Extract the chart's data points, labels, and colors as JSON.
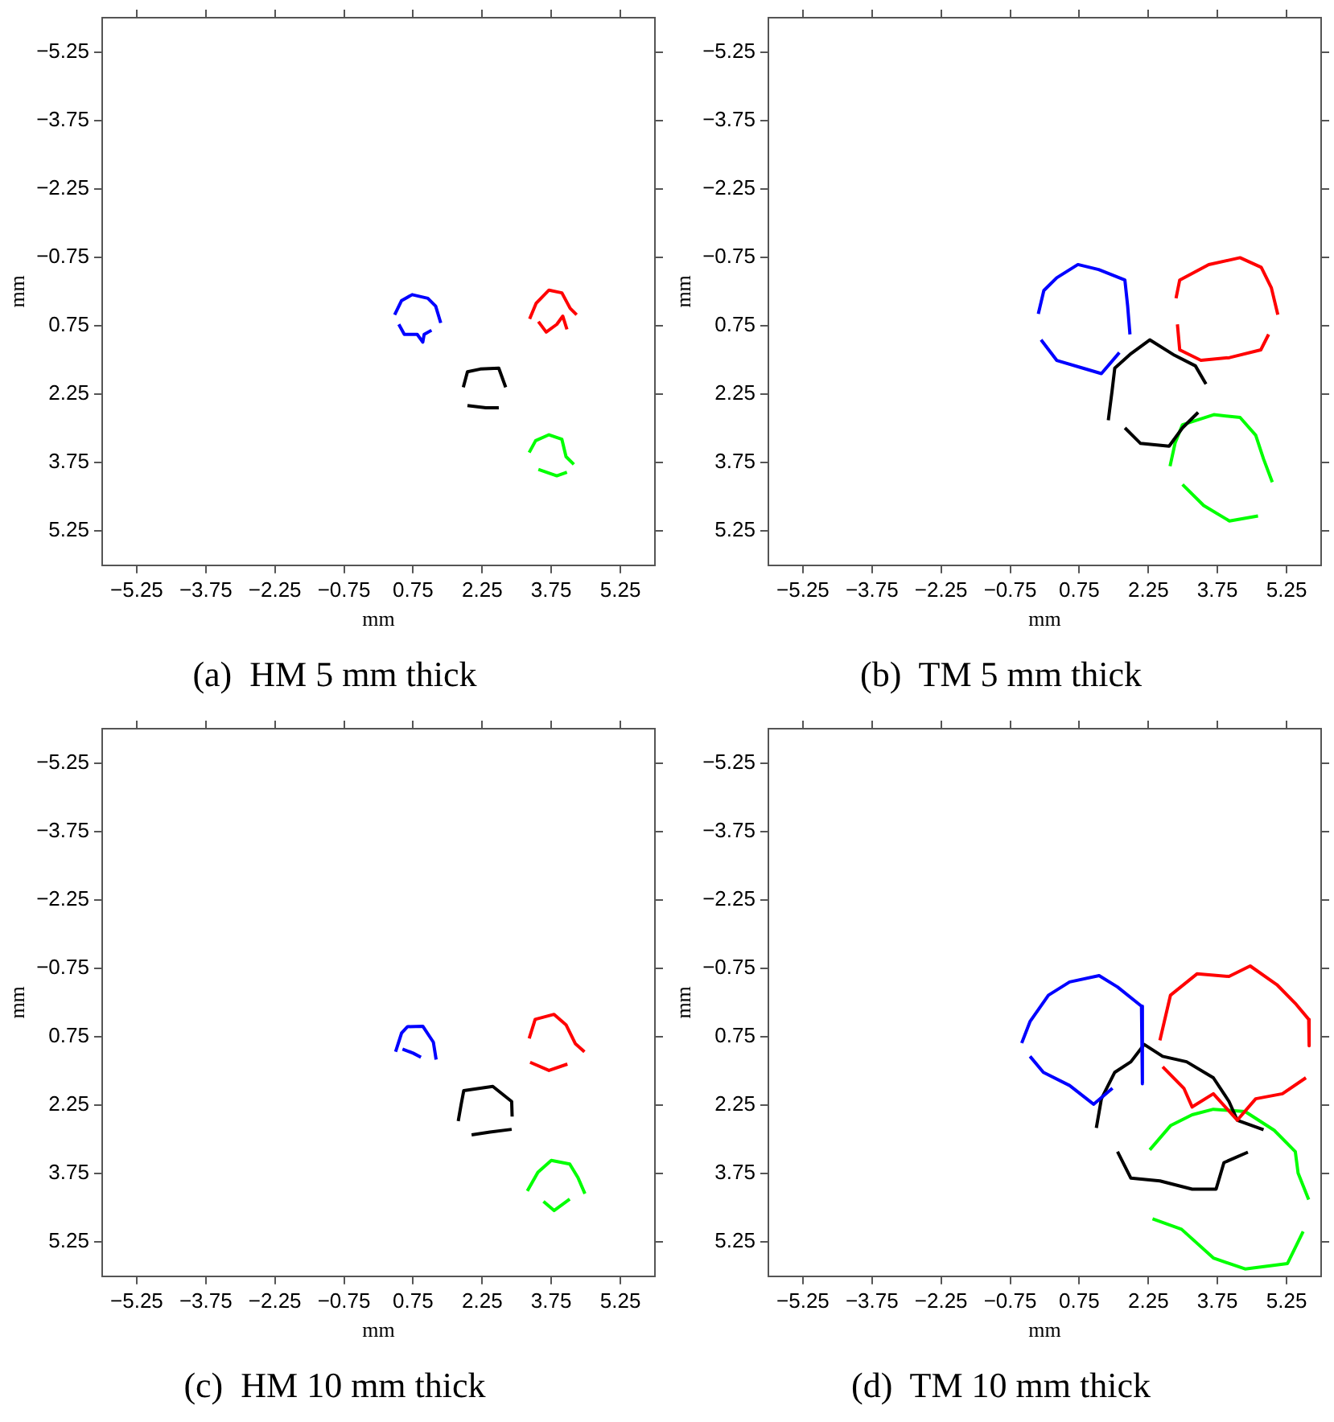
{
  "chart_data": [
    {
      "type": "line",
      "title": "(a)  HM 5 mm thick",
      "xlabel": "mm",
      "ylabel": "mm",
      "xlim": [
        -6,
        6
      ],
      "ylim": [
        6,
        -6
      ],
      "xticks": [
        -5.25,
        -3.75,
        -2.25,
        -0.75,
        0.75,
        2.25,
        3.75,
        5.25
      ],
      "yticks": [
        -5.25,
        -3.75,
        -2.25,
        -0.75,
        0.75,
        2.25,
        3.75,
        5.25
      ],
      "grid": false,
      "legend": false,
      "series": [
        {
          "color": "#0000ff",
          "x": [
            0.35,
            0.5,
            0.73,
            1.07,
            1.24,
            1.35
          ],
          "values": [
            0.51,
            0.2,
            0.07,
            0.15,
            0.32,
            0.69
          ]
        },
        {
          "color": "#0000ff",
          "x": [
            0.44,
            0.56,
            0.84,
            0.96,
            0.99,
            1.15
          ],
          "values": [
            0.72,
            0.94,
            0.94,
            1.11,
            0.94,
            0.85
          ]
        },
        {
          "color": "#ff0000",
          "x": [
            3.28,
            3.42,
            3.7,
            3.98,
            4.16,
            4.3
          ],
          "values": [
            0.6,
            0.26,
            -0.03,
            0.03,
            0.37,
            0.51
          ]
        },
        {
          "color": "#ff0000",
          "x": [
            3.47,
            3.64,
            3.87,
            4.0,
            4.09
          ],
          "values": [
            0.66,
            0.89,
            0.72,
            0.54,
            0.83
          ]
        },
        {
          "color": "#000000",
          "x": [
            1.84,
            1.93,
            2.21,
            2.61,
            2.76
          ],
          "values": [
            2.1,
            1.76,
            1.7,
            1.68,
            2.1
          ]
        },
        {
          "color": "#000000",
          "x": [
            1.93,
            2.33,
            2.61
          ],
          "values": [
            2.5,
            2.55,
            2.55
          ]
        },
        {
          "color": "#00ff00",
          "x": [
            3.27,
            3.41,
            3.7,
            3.98,
            4.07,
            4.24
          ],
          "values": [
            3.53,
            3.27,
            3.14,
            3.24,
            3.62,
            3.79
          ]
        },
        {
          "color": "#00ff00",
          "x": [
            3.47,
            3.87,
            4.09
          ],
          "values": [
            3.9,
            4.04,
            3.96
          ]
        }
      ]
    },
    {
      "type": "line",
      "title": "(b)  TM 5 mm thick",
      "xlabel": "mm",
      "ylabel": "mm",
      "xlim": [
        -6,
        6
      ],
      "ylim": [
        6,
        -6
      ],
      "xticks": [
        -5.25,
        -3.75,
        -2.25,
        -0.75,
        0.75,
        2.25,
        3.75,
        5.25
      ],
      "yticks": [
        -5.25,
        -3.75,
        -2.25,
        -0.75,
        0.75,
        2.25,
        3.75,
        5.25
      ],
      "grid": false,
      "legend": false,
      "series": [
        {
          "color": "#0000ff",
          "x": [
            -0.14,
            -0.02,
            0.26,
            0.72,
            1.17,
            1.74,
            1.8,
            1.85
          ],
          "values": [
            0.49,
            -0.02,
            -0.3,
            -0.59,
            -0.48,
            -0.25,
            0.32,
            0.94
          ]
        },
        {
          "color": "#0000ff",
          "x": [
            -0.08,
            0.26,
            0.83,
            1.23,
            1.62
          ],
          "values": [
            1.06,
            1.51,
            1.68,
            1.8,
            1.34
          ]
        },
        {
          "color": "#ff0000",
          "x": [
            2.85,
            2.93,
            3.56,
            4.24,
            4.7,
            4.92,
            5.06
          ],
          "values": [
            0.15,
            -0.25,
            -0.59,
            -0.74,
            -0.53,
            -0.08,
            0.51
          ]
        },
        {
          "color": "#ff0000",
          "x": [
            2.88,
            2.93,
            3.39,
            4.01,
            4.69,
            4.86
          ],
          "values": [
            0.72,
            1.28,
            1.51,
            1.45,
            1.28,
            0.94
          ]
        },
        {
          "color": "#000000",
          "x": [
            1.38,
            1.46,
            1.52,
            1.85,
            2.28,
            2.82,
            3.27,
            3.5
          ],
          "values": [
            2.82,
            2.19,
            1.68,
            1.38,
            1.06,
            1.4,
            1.63,
            2.03
          ]
        },
        {
          "color": "#000000",
          "x": [
            1.74,
            2.08,
            2.7,
            2.99,
            3.33
          ],
          "values": [
            2.99,
            3.33,
            3.39,
            2.99,
            2.65
          ]
        },
        {
          "color": "#00ff00",
          "x": [
            2.72,
            2.83,
            2.99,
            3.67,
            4.24,
            4.58,
            4.75,
            4.94
          ],
          "values": [
            3.83,
            3.32,
            2.92,
            2.7,
            2.76,
            3.15,
            3.67,
            4.18
          ]
        },
        {
          "color": "#00ff00",
          "x": [
            2.99,
            3.45,
            4.01,
            4.63
          ],
          "values": [
            4.23,
            4.69,
            5.03,
            4.92
          ]
        }
      ]
    },
    {
      "type": "line",
      "title": "(c)  HM 10 mm thick",
      "xlabel": "mm",
      "ylabel": "mm",
      "xlim": [
        -6,
        6
      ],
      "ylim": [
        6,
        -6
      ],
      "xticks": [
        -5.25,
        -3.75,
        -2.25,
        -0.75,
        0.75,
        2.25,
        3.75,
        5.25
      ],
      "yticks": [
        -5.25,
        -3.75,
        -2.25,
        -0.75,
        0.75,
        2.25,
        3.75,
        5.25
      ],
      "grid": false,
      "legend": false,
      "series": [
        {
          "color": "#0000ff",
          "x": [
            0.37,
            0.5,
            0.63,
            0.96,
            1.19,
            1.25
          ],
          "values": [
            1.08,
            0.67,
            0.53,
            0.52,
            0.87,
            1.25
          ]
        },
        {
          "color": "#0000ff",
          "x": [
            0.52,
            0.75,
            0.92
          ],
          "values": [
            1.02,
            1.11,
            1.2
          ]
        },
        {
          "color": "#ff0000",
          "x": [
            3.27,
            3.4,
            3.81,
            4.07,
            4.27,
            4.47
          ],
          "values": [
            0.79,
            0.37,
            0.26,
            0.49,
            0.9,
            1.08
          ]
        },
        {
          "color": "#ff0000",
          "x": [
            3.29,
            3.7,
            4.1
          ],
          "values": [
            1.31,
            1.49,
            1.35
          ]
        },
        {
          "color": "#000000",
          "x": [
            1.73,
            1.79,
            1.85,
            2.48,
            2.89,
            2.9
          ],
          "values": [
            2.6,
            2.25,
            1.93,
            1.84,
            2.17,
            2.5
          ]
        },
        {
          "color": "#000000",
          "x": [
            2.02,
            2.42,
            2.89
          ],
          "values": [
            2.9,
            2.84,
            2.78
          ]
        },
        {
          "color": "#00ff00",
          "x": [
            3.23,
            3.46,
            3.75,
            4.15,
            4.33,
            4.48
          ],
          "values": [
            4.13,
            3.72,
            3.46,
            3.54,
            3.84,
            4.19
          ]
        },
        {
          "color": "#00ff00",
          "x": [
            3.58,
            3.81,
            4.15
          ],
          "values": [
            4.36,
            4.56,
            4.31
          ]
        }
      ]
    },
    {
      "type": "line",
      "title": "(d)  TM 10 mm thick",
      "xlabel": "mm",
      "ylabel": "mm",
      "xlim": [
        -6,
        6
      ],
      "ylim": [
        6,
        -6
      ],
      "xticks": [
        -5.25,
        -3.75,
        -2.25,
        -0.75,
        0.75,
        2.25,
        3.75,
        5.25
      ],
      "yticks": [
        -5.25,
        -3.75,
        -2.25,
        -0.75,
        0.75,
        2.25,
        3.75,
        5.25
      ],
      "grid": false,
      "legend": false,
      "series": [
        {
          "color": "#0000ff",
          "x": [
            -0.5,
            -0.32,
            0.08,
            0.54,
            1.18,
            1.58,
            2.1,
            2.12
          ],
          "values": [
            0.89,
            0.42,
            -0.16,
            -0.45,
            -0.59,
            -0.34,
            0.08,
            1.78
          ]
        },
        {
          "color": "#0000ff",
          "x": [
            -0.32,
            -0.03,
            0.54,
            1.06,
            1.47
          ],
          "values": [
            1.18,
            1.53,
            1.82,
            2.23,
            1.88
          ]
        },
        {
          "color": "#ff0000",
          "x": [
            2.5,
            2.73,
            3.31,
            4.0,
            4.46,
            5.04,
            5.44,
            5.73,
            5.74
          ],
          "values": [
            0.83,
            -0.16,
            -0.63,
            -0.57,
            -0.8,
            -0.39,
            0.02,
            0.37,
            0.95
          ]
        },
        {
          "color": "#ff0000",
          "x": [
            2.56,
            3.02,
            3.2,
            3.66,
            4.18,
            4.58,
            5.16,
            5.67
          ],
          "values": [
            1.41,
            1.88,
            2.29,
            2.0,
            2.58,
            2.11,
            2.0,
            1.65
          ]
        },
        {
          "color": "#000000",
          "x": [
            1.12,
            1.23,
            1.52,
            1.87,
            2.16,
            2.56,
            3.08,
            3.66,
            4.0,
            4.18,
            4.75
          ],
          "values": [
            2.75,
            2.11,
            1.53,
            1.3,
            0.92,
            1.18,
            1.3,
            1.65,
            2.17,
            2.58,
            2.79
          ]
        },
        {
          "color": "#000000",
          "x": [
            1.58,
            1.87,
            2.5,
            3.2,
            3.72,
            3.89,
            4.41
          ],
          "values": [
            3.27,
            3.85,
            3.91,
            4.09,
            4.09,
            3.51,
            3.28
          ]
        },
        {
          "color": "#00ff00",
          "x": [
            2.28,
            2.73,
            3.2,
            3.66,
            4.35,
            4.98,
            5.44,
            5.5,
            5.73
          ],
          "values": [
            3.23,
            2.7,
            2.46,
            2.34,
            2.39,
            2.8,
            3.27,
            3.74,
            4.32
          ]
        },
        {
          "color": "#00ff00",
          "x": [
            2.34,
            2.97,
            3.66,
            4.35,
            5.27,
            5.61
          ],
          "values": [
            4.74,
            4.97,
            5.6,
            5.84,
            5.72,
            5.02
          ]
        }
      ]
    }
  ]
}
